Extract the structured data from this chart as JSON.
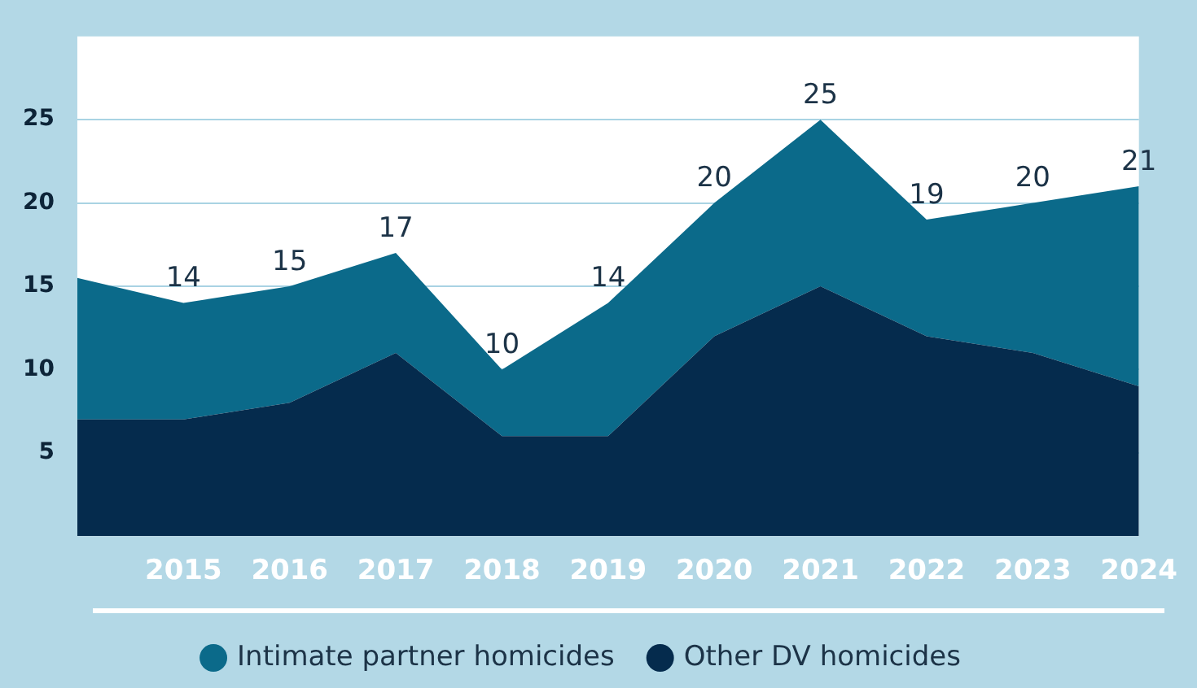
{
  "chart_data": {
    "type": "area",
    "stacked": true,
    "categories": [
      null,
      "2015",
      "2016",
      "2017",
      "2018",
      "2019",
      "2020",
      "2021",
      "2022",
      "2023",
      "2024"
    ],
    "series": [
      {
        "name": "Other DV homicides",
        "color": "#052b4d",
        "values": [
          7,
          7,
          8,
          11,
          6,
          6,
          12,
          15,
          12,
          11,
          9
        ]
      },
      {
        "name": "Intimate partner homicides",
        "color": "#0b6a8a",
        "values": [
          8.5,
          7,
          7,
          6,
          4,
          8,
          8,
          10,
          7,
          9,
          12
        ]
      }
    ],
    "totals": [
      null,
      "14",
      "15",
      "17",
      "10",
      "14",
      "20",
      "25",
      "19",
      "20",
      "21"
    ],
    "ylim": [
      0,
      30
    ],
    "yticks": [
      5,
      10,
      15,
      20,
      25
    ],
    "grid": "y",
    "legend": "bottom"
  }
}
